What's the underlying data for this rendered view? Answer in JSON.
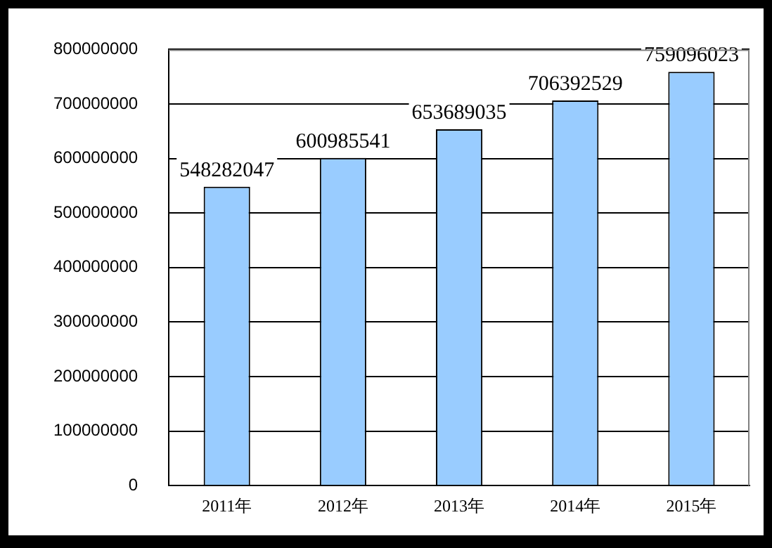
{
  "chart_data": {
    "type": "bar",
    "categories": [
      "2011年",
      "2012年",
      "2013年",
      "2014年",
      "2015年"
    ],
    "values": [
      548282047,
      600985541,
      653689035,
      706392529,
      759096023
    ],
    "color": "#99ccff",
    "ylim": [
      0,
      800000000
    ],
    "yticks": [
      0,
      100000000,
      200000000,
      300000000,
      400000000,
      500000000,
      600000000,
      700000000,
      800000000
    ],
    "grid": "y",
    "data_labels": true,
    "legend": false
  }
}
